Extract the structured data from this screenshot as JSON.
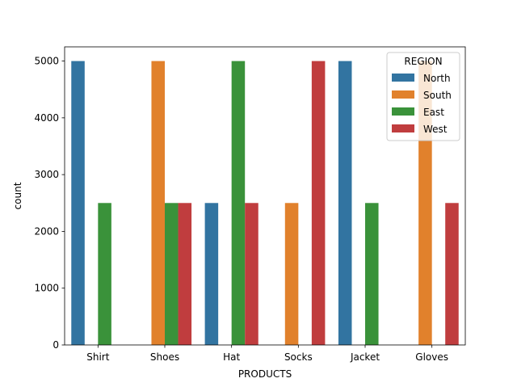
{
  "chart_data": {
    "type": "bar",
    "title": "",
    "xlabel": "PRODUCTS",
    "ylabel": "count",
    "categories": [
      "Shirt",
      "Shoes",
      "Hat",
      "Socks",
      "Jacket",
      "Gloves"
    ],
    "ylim": [
      0,
      5250
    ],
    "yticks": [
      0,
      1000,
      2000,
      3000,
      4000,
      5000
    ],
    "grid": false,
    "legend": {
      "title": "REGION",
      "placement": "top-right"
    },
    "series": [
      {
        "name": "North",
        "color": "#3274a1",
        "values": [
          5000,
          0,
          2500,
          0,
          5000,
          0
        ]
      },
      {
        "name": "South",
        "color": "#e1812c",
        "values": [
          0,
          5000,
          0,
          2500,
          0,
          5000
        ]
      },
      {
        "name": "East",
        "color": "#3a923a",
        "values": [
          2500,
          2500,
          5000,
          0,
          2500,
          0
        ]
      },
      {
        "name": "West",
        "color": "#c03d3e",
        "values": [
          0,
          2500,
          2500,
          5000,
          0,
          2500
        ]
      }
    ]
  }
}
